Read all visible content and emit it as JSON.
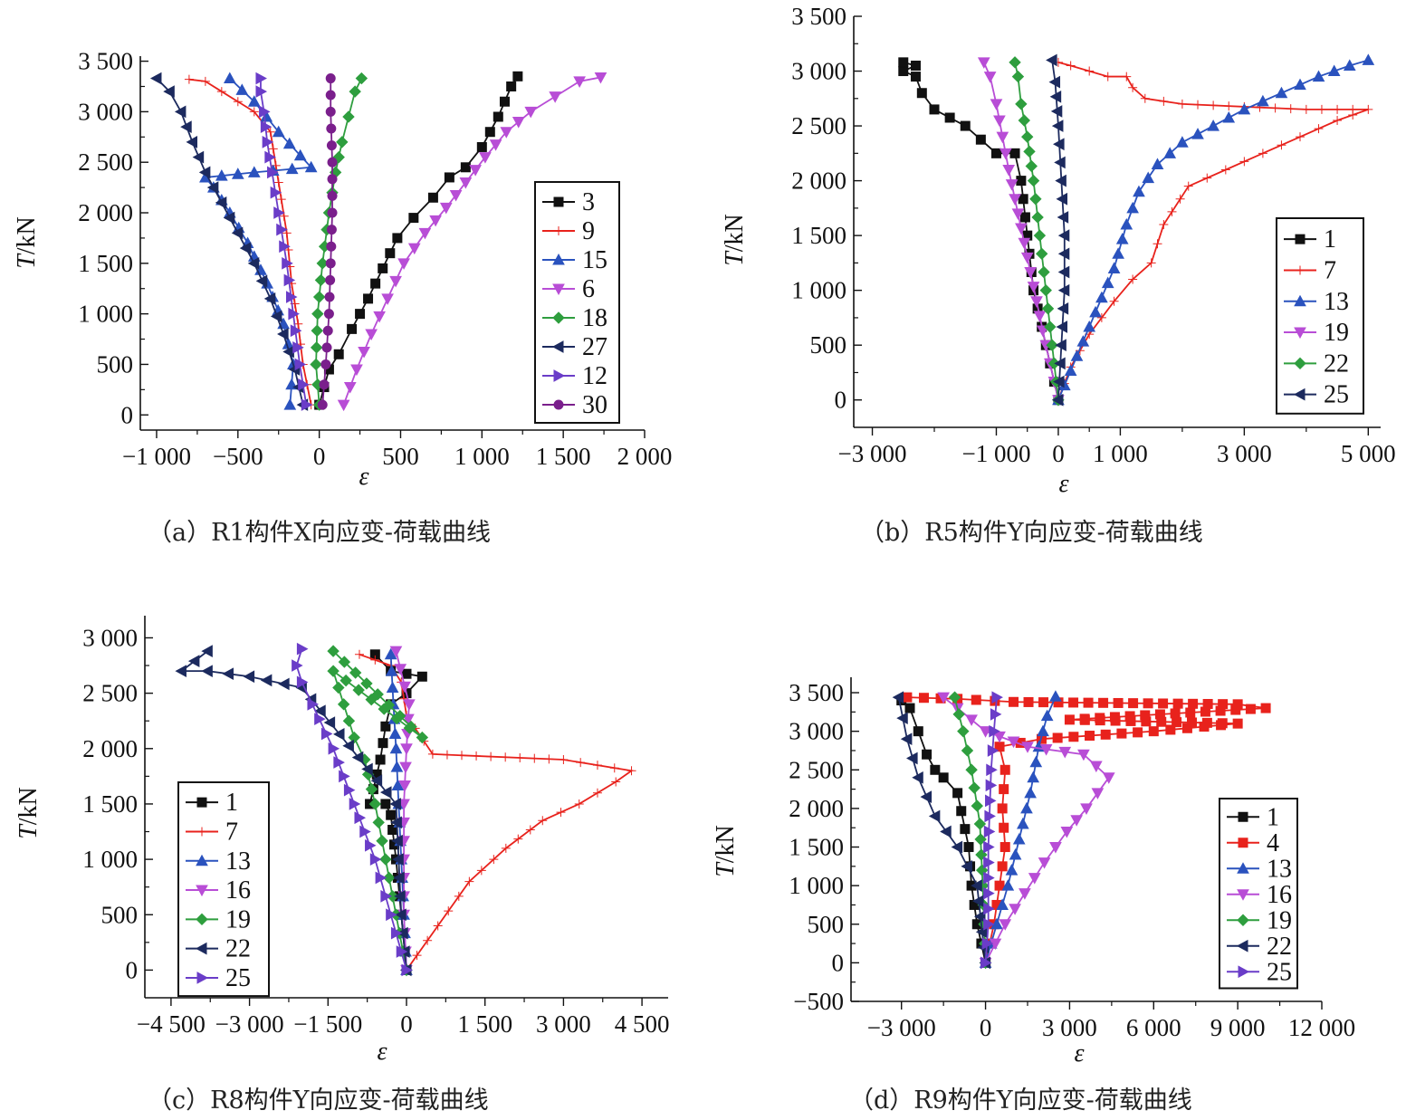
{
  "chart_data": [
    {
      "type": "line",
      "caption": "（a）R1构件X向应变-荷载曲线",
      "xlabel": "ε",
      "ylabel": "T/kN",
      "xlim": [
        -1100,
        2000
      ],
      "ylim": [
        -150,
        3550
      ],
      "xticks": [
        -1000,
        -500,
        0,
        500,
        1000,
        1500,
        2000
      ],
      "xtick_labels": [
        "−1 000",
        "−500",
        "0",
        "500",
        "1 000",
        "1 500",
        "2 000"
      ],
      "yticks": [
        0,
        500,
        1000,
        1500,
        2000,
        2500,
        3000,
        3500
      ],
      "ytick_labels": [
        "0",
        "500",
        "1 000",
        "1 500",
        "2 000",
        "2 500",
        "3 000",
        "3 500"
      ],
      "legend_position": "center-right",
      "series": [
        {
          "name": "3",
          "color": "#111111",
          "marker": "square",
          "x": [
            0,
            60,
            120,
            200,
            300,
            390,
            480,
            580,
            700,
            800,
            900,
            1000,
            1100,
            1180,
            1220
          ],
          "y": [
            100,
            450,
            600,
            850,
            1150,
            1450,
            1750,
            1950,
            2150,
            2350,
            2450,
            2650,
            2950,
            3250,
            3350
          ]
        },
        {
          "name": "9",
          "color": "#e8221c",
          "marker": "plus",
          "x": [
            -50,
            -100,
            -130,
            -170,
            -200,
            -250,
            -300,
            -400,
            -500,
            -600,
            -700,
            -800
          ],
          "y": [
            100,
            500,
            900,
            1300,
            1800,
            2300,
            2800,
            3000,
            3100,
            3200,
            3300,
            3320
          ]
        },
        {
          "name": "15",
          "color": "#2a52be",
          "marker": "triangle-up",
          "x": [
            -180,
            -160,
            -220,
            -320,
            -440,
            -550,
            -650,
            -700,
            -400,
            -50,
            -250,
            -400,
            -550
          ],
          "y": [
            100,
            500,
            900,
            1300,
            1700,
            2000,
            2250,
            2350,
            2400,
            2450,
            2800,
            3100,
            3330
          ]
        },
        {
          "name": "6",
          "color": "#b84dd6",
          "marker": "triangle-down",
          "x": [
            150,
            230,
            320,
            420,
            520,
            650,
            780,
            900,
            1020,
            1150,
            1300,
            1450,
            1600,
            1730
          ],
          "y": [
            100,
            450,
            800,
            1150,
            1500,
            1800,
            2050,
            2300,
            2550,
            2800,
            3000,
            3150,
            3300,
            3340
          ]
        },
        {
          "name": "18",
          "color": "#2e9e3e",
          "marker": "diamond",
          "x": [
            0,
            -20,
            -10,
            20,
            60,
            100,
            140,
            180,
            220,
            260
          ],
          "y": [
            100,
            500,
            1000,
            1500,
            2000,
            2400,
            2700,
            2950,
            3200,
            3330
          ]
        },
        {
          "name": "27",
          "color": "#1c2a5e",
          "marker": "triangle-left",
          "x": [
            -100,
            -150,
            -220,
            -300,
            -400,
            -500,
            -600,
            -700,
            -780,
            -850,
            -920,
            -1000
          ],
          "y": [
            100,
            450,
            800,
            1150,
            1500,
            1800,
            2100,
            2400,
            2700,
            3000,
            3200,
            3330
          ]
        },
        {
          "name": "12",
          "color": "#6a3dc8",
          "marker": "triangle-right",
          "x": [
            -80,
            -120,
            -160,
            -200,
            -250,
            -290,
            -320,
            -340,
            -360,
            -360
          ],
          "y": [
            100,
            500,
            1000,
            1500,
            2000,
            2400,
            2700,
            3000,
            3200,
            3330
          ]
        },
        {
          "name": "30",
          "color": "#7a1f8c",
          "marker": "circle",
          "x": [
            20,
            40,
            60,
            70,
            80,
            80,
            70,
            70
          ],
          "y": [
            100,
            500,
            1000,
            1500,
            2000,
            2500,
            3000,
            3330
          ]
        }
      ]
    },
    {
      "type": "line",
      "caption": "（b）R5构件Y向应变-荷载曲线",
      "xlabel": "ε",
      "ylabel": "T/kN",
      "xlim": [
        -3300,
        5200
      ],
      "ylim": [
        -250,
        3500
      ],
      "xticks": [
        -3000,
        -1000,
        0,
        1000,
        3000,
        5000
      ],
      "xtick_labels": [
        "−3 000",
        "−1 000",
        "0",
        "1 000",
        "3 000",
        "5 000"
      ],
      "yticks": [
        0,
        500,
        1000,
        1500,
        2000,
        2500,
        3000,
        3500
      ],
      "ytick_labels": [
        "0",
        "500",
        "1 000",
        "1 500",
        "2 000",
        "2 500",
        "3 000",
        "3 500"
      ],
      "legend_position": "center-right",
      "series": [
        {
          "name": "1",
          "color": "#111111",
          "marker": "square",
          "x": [
            0,
            -200,
            -400,
            -500,
            -600,
            -700,
            -1000,
            -1500,
            -2000,
            -2200,
            -2300,
            -2500,
            -2300,
            -2500
          ],
          "y": [
            0,
            500,
            1000,
            1500,
            2000,
            2250,
            2250,
            2500,
            2650,
            2800,
            2950,
            3000,
            3050,
            3080
          ]
        },
        {
          "name": "7",
          "color": "#e8221c",
          "marker": "plus",
          "x": [
            0,
            200,
            500,
            900,
            1200,
            1500,
            1700,
            2100,
            2700,
            3300,
            3900,
            4500,
            5000,
            4000,
            2000,
            1400,
            1200,
            1100,
            800,
            200,
            0
          ],
          "y": [
            0,
            300,
            600,
            900,
            1100,
            1250,
            1600,
            1950,
            2100,
            2250,
            2400,
            2550,
            2650,
            2650,
            2700,
            2750,
            2850,
            2950,
            2950,
            3050,
            3080
          ]
        },
        {
          "name": "13",
          "color": "#2a52be",
          "marker": "triangle-up",
          "x": [
            0,
            300,
            600,
            900,
            1100,
            1300,
            1600,
            2000,
            2500,
            3000,
            3600,
            4200,
            4700,
            5000
          ],
          "y": [
            0,
            400,
            800,
            1200,
            1600,
            1900,
            2150,
            2350,
            2500,
            2650,
            2800,
            2950,
            3050,
            3100
          ]
        },
        {
          "name": "19",
          "color": "#b84dd6",
          "marker": "triangle-down",
          "x": [
            0,
            -200,
            -350,
            -500,
            -650,
            -800,
            -900,
            -1000,
            -1100,
            -1200
          ],
          "y": [
            0,
            500,
            900,
            1300,
            1700,
            2100,
            2400,
            2700,
            2950,
            3080
          ]
        },
        {
          "name": "22",
          "color": "#2e9e3e",
          "marker": "diamond",
          "x": [
            0,
            -100,
            -200,
            -300,
            -400,
            -500,
            -600,
            -650,
            -700
          ],
          "y": [
            0,
            500,
            1000,
            1500,
            2000,
            2400,
            2700,
            2950,
            3080
          ]
        },
        {
          "name": "25",
          "color": "#1c2a5e",
          "marker": "triangle-left",
          "x": [
            0,
            50,
            100,
            100,
            50,
            0,
            -50,
            -100
          ],
          "y": [
            0,
            500,
            1000,
            1500,
            2000,
            2500,
            2900,
            3100
          ]
        }
      ]
    },
    {
      "type": "line",
      "caption": "（c）R8构件Y向应变-荷载曲线",
      "xlabel": "ε",
      "ylabel": "T/kN",
      "xlim": [
        -5000,
        5000
      ],
      "ylim": [
        -250,
        3200
      ],
      "xticks": [
        -4500,
        -3000,
        -1500,
        0,
        1500,
        3000,
        4500
      ],
      "xtick_labels": [
        "−4 500",
        "−3 000",
        "−1 500",
        "0",
        "1 500",
        "3 000",
        "4 500"
      ],
      "yticks": [
        0,
        500,
        1000,
        1500,
        2000,
        2500,
        3000
      ],
      "ytick_labels": [
        "0",
        "500",
        "1 000",
        "1 500",
        "2 000",
        "2 500",
        "3 000"
      ],
      "legend_position": "center-left",
      "series": [
        {
          "name": "1",
          "color": "#111111",
          "marker": "square",
          "x": [
            0,
            -100,
            -200,
            -300,
            -400,
            -700,
            -500,
            -400,
            -300,
            0,
            300,
            -300,
            -600
          ],
          "y": [
            0,
            500,
            1000,
            1400,
            1500,
            1500,
            1900,
            2200,
            2400,
            2500,
            2650,
            2700,
            2850
          ]
        },
        {
          "name": "7",
          "color": "#e8221c",
          "marker": "plus",
          "x": [
            0,
            600,
            1200,
            1900,
            2600,
            3300,
            4000,
            4300,
            3000,
            500,
            0,
            -100,
            -300,
            -600,
            -900
          ],
          "y": [
            0,
            400,
            800,
            1100,
            1350,
            1500,
            1700,
            1800,
            1900,
            1950,
            2300,
            2600,
            2750,
            2800,
            2850
          ]
        },
        {
          "name": "13",
          "color": "#2a52be",
          "marker": "triangle-up",
          "x": [
            0,
            -50,
            -100,
            -150,
            -200,
            -250,
            -300
          ],
          "y": [
            0,
            500,
            1000,
            1500,
            2000,
            2400,
            2850
          ]
        },
        {
          "name": "16",
          "color": "#b84dd6",
          "marker": "triangle-down",
          "x": [
            0,
            -50,
            -50,
            -50,
            0,
            50,
            -200
          ],
          "y": [
            0,
            500,
            1000,
            1500,
            2000,
            2400,
            2880
          ]
        },
        {
          "name": "19",
          "color": "#2e9e3e",
          "marker": "diamond",
          "x": [
            0,
            -200,
            -400,
            -600,
            -800,
            -1000,
            -1200,
            -1400,
            300,
            -1400
          ],
          "y": [
            0,
            500,
            1000,
            1500,
            1900,
            2100,
            2400,
            2700,
            2100,
            2880
          ]
        },
        {
          "name": "22",
          "color": "#1c2a5e",
          "marker": "triangle-left",
          "x": [
            0,
            -100,
            -150,
            -200,
            -2000,
            -3000,
            -3800,
            -4300,
            -3800
          ],
          "y": [
            0,
            500,
            1000,
            1500,
            2550,
            2650,
            2700,
            2700,
            2880
          ]
        },
        {
          "name": "25",
          "color": "#6a3dc8",
          "marker": "triangle-right",
          "x": [
            0,
            -300,
            -600,
            -1000,
            -1400,
            -1800,
            -2000,
            -2100,
            -2000
          ],
          "y": [
            0,
            500,
            1000,
            1500,
            2000,
            2400,
            2600,
            2750,
            2900
          ]
        }
      ]
    },
    {
      "type": "line",
      "caption": "（d）R9构件Y向应变-荷载曲线",
      "xlabel": "ε",
      "ylabel": "T/kN",
      "xlim": [
        -4800,
        12000
      ],
      "ylim": [
        -500,
        3700
      ],
      "xticks": [
        -3000,
        0,
        3000,
        6000,
        9000,
        12000
      ],
      "xtick_labels": [
        "−3 000",
        "0",
        "3 000",
        "6 000",
        "9 000",
        "12 000"
      ],
      "yticks": [
        -500,
        0,
        500,
        1000,
        1500,
        2000,
        2500,
        3000,
        3500
      ],
      "ytick_labels": [
        "−500",
        "0",
        "500",
        "1 000",
        "1 500",
        "2 000",
        "2 500",
        "3 000",
        "3 500"
      ],
      "legend_position": "center-right",
      "series": [
        {
          "name": "1",
          "color": "#111111",
          "marker": "square",
          "x": [
            0,
            -300,
            -500,
            -600,
            -1000,
            -1500,
            -1800,
            -2100,
            -2400,
            -2700,
            -3000
          ],
          "y": [
            0,
            500,
            1000,
            1500,
            2200,
            2400,
            2500,
            2700,
            3000,
            3300,
            3400
          ]
        },
        {
          "name": "4",
          "color": "#e8221c",
          "marker": "square",
          "x": [
            0,
            300,
            500,
            700,
            600,
            700,
            500,
            2000,
            6000,
            9000,
            3000,
            10000,
            9000,
            1000,
            -1000,
            -2800
          ],
          "y": [
            0,
            500,
            1000,
            1500,
            2000,
            2500,
            2800,
            2900,
            3000,
            3100,
            3150,
            3300,
            3350,
            3380,
            3420,
            3440
          ]
        },
        {
          "name": "13",
          "color": "#2a52be",
          "marker": "triangle-up",
          "x": [
            0,
            400,
            800,
            1200,
            1600,
            1900,
            2200,
            2500
          ],
          "y": [
            0,
            500,
            1000,
            1600,
            2200,
            2800,
            3200,
            3450
          ]
        },
        {
          "name": "16",
          "color": "#b84dd6",
          "marker": "triangle-down",
          "x": [
            0,
            700,
            1400,
            2100,
            2900,
            3600,
            4400,
            3500,
            1500,
            0,
            -1000,
            -1500
          ],
          "y": [
            0,
            500,
            900,
            1300,
            1700,
            2000,
            2400,
            2700,
            2800,
            3000,
            3300,
            3440
          ]
        },
        {
          "name": "19",
          "color": "#2e9e3e",
          "marker": "diamond",
          "x": [
            0,
            -50,
            -100,
            -200,
            -500,
            -800,
            -1100
          ],
          "y": [
            0,
            500,
            1000,
            1800,
            2500,
            3000,
            3440
          ]
        },
        {
          "name": "22",
          "color": "#1c2a5e",
          "marker": "triangle-left",
          "x": [
            0,
            -300,
            -1000,
            -1800,
            -2400,
            -2800,
            -3100
          ],
          "y": [
            0,
            1000,
            1500,
            1900,
            2400,
            2900,
            3440
          ]
        },
        {
          "name": "25",
          "color": "#6a3dc8",
          "marker": "triangle-right",
          "x": [
            0,
            100,
            100,
            200,
            300,
            400
          ],
          "y": [
            0,
            500,
            1500,
            2500,
            3000,
            3440
          ]
        }
      ]
    }
  ]
}
